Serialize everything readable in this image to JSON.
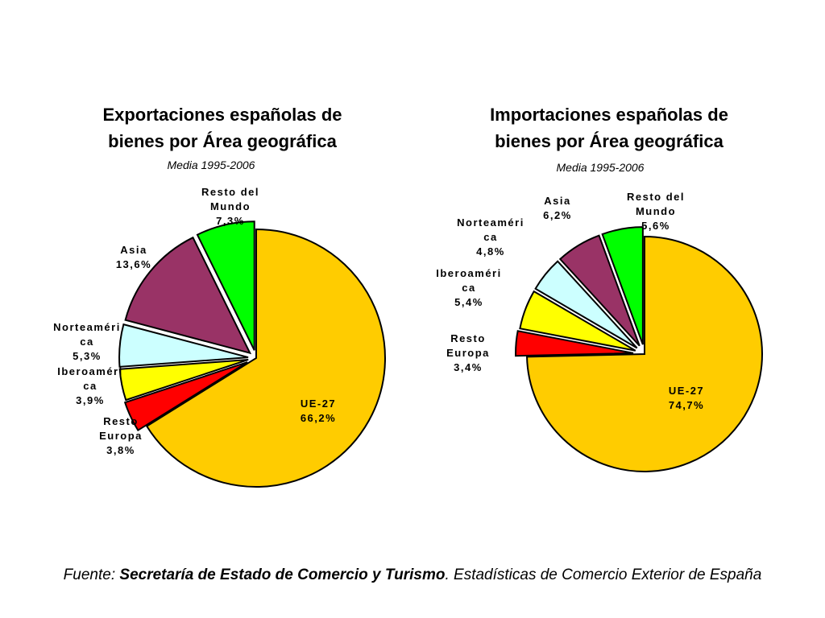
{
  "chart_data": [
    {
      "type": "pie",
      "title_lines": [
        "Exportaciones españolas de",
        "bienes por Área geográfica"
      ],
      "subtitle": "Media 1995-2006",
      "slices": [
        {
          "name_lines": [
            "UE-27"
          ],
          "label": "66,2%",
          "value": 66.2,
          "color": "#ffcc00"
        },
        {
          "name_lines": [
            "Resto del",
            "Mundo"
          ],
          "label": "7,3%",
          "value": 7.3,
          "color": "#00ff00"
        },
        {
          "name_lines": [
            "Asia"
          ],
          "label": "13,6%",
          "value": 13.6,
          "color": "#993366"
        },
        {
          "name_lines": [
            "Norteaméri",
            "ca"
          ],
          "label": "5,3%",
          "value": 5.3,
          "color": "#ccffff"
        },
        {
          "name_lines": [
            "Iberoaméri",
            "ca"
          ],
          "label": "3,9%",
          "value": 3.9,
          "color": "#ffff00"
        },
        {
          "name_lines": [
            "Resto",
            "Europa"
          ],
          "label": "3,8%",
          "value": 3.8,
          "color": "#ff0000"
        }
      ]
    },
    {
      "type": "pie",
      "title_lines": [
        "Importaciones españolas de",
        "bienes por Área geográfica"
      ],
      "subtitle": "Media 1995-2006",
      "slices": [
        {
          "name_lines": [
            "UE-27"
          ],
          "label": "74,7%",
          "value": 74.7,
          "color": "#ffcc00"
        },
        {
          "name_lines": [
            "Resto del",
            "Mundo"
          ],
          "label": "5,6%",
          "value": 5.6,
          "color": "#00ff00"
        },
        {
          "name_lines": [
            "Asia"
          ],
          "label": "6,2%",
          "value": 6.2,
          "color": "#993366"
        },
        {
          "name_lines": [
            "Norteaméri",
            "ca"
          ],
          "label": "4,8%",
          "value": 4.8,
          "color": "#ccffff"
        },
        {
          "name_lines": [
            "Iberoaméri",
            "ca"
          ],
          "label": "5,4%",
          "value": 5.4,
          "color": "#ffff00"
        },
        {
          "name_lines": [
            "Resto",
            "Europa"
          ],
          "label": "3,4%",
          "value": 3.4,
          "color": "#ff0000"
        }
      ]
    }
  ],
  "footer": {
    "prefix": "Fuente: ",
    "source": "Secretaría de Estado de Comercio y Turismo",
    "suffix": ". Estadísticas de Comercio Exterior de España"
  }
}
